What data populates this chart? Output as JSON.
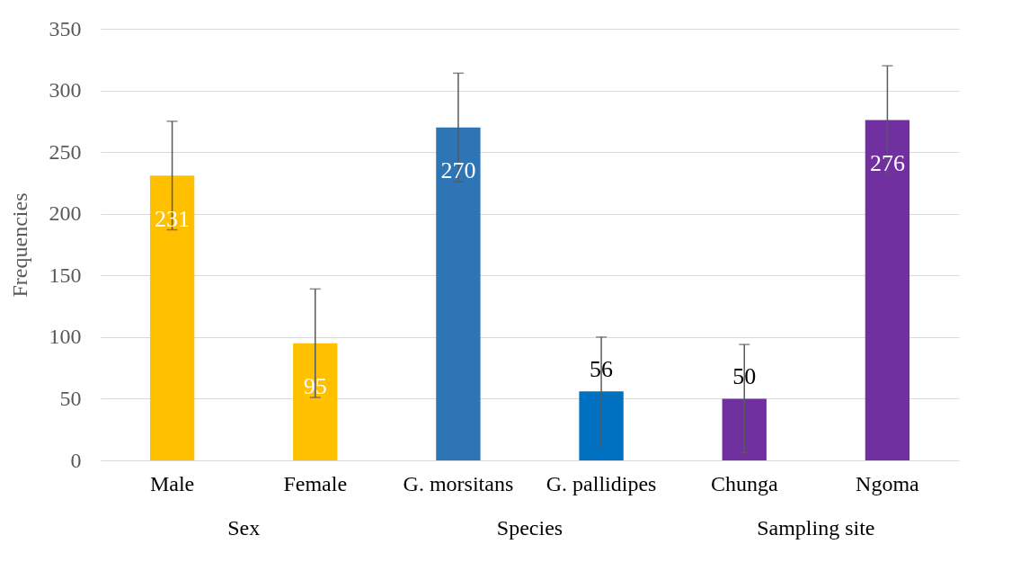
{
  "chart_data": {
    "type": "bar",
    "ylabel": "Frequencies",
    "categories": [
      "Male",
      "Female",
      "G. morsitans",
      "G. pallidipes",
      "Chunga",
      "Ngoma"
    ],
    "values": [
      231,
      95,
      270,
      56,
      50,
      276
    ],
    "colors": [
      "#ffc000",
      "#ffc000",
      "#2e75b6",
      "#0070c0",
      "#7030a0",
      "#7030a0"
    ],
    "errors": [
      44,
      44,
      44,
      44,
      44,
      44
    ],
    "ylim": [
      0,
      350
    ],
    "yticks": [
      0,
      50,
      100,
      150,
      200,
      250,
      300,
      350
    ],
    "grid": "y",
    "data_labels": true,
    "annotations": [
      "Sex",
      "Species",
      "Sampling site"
    ]
  }
}
